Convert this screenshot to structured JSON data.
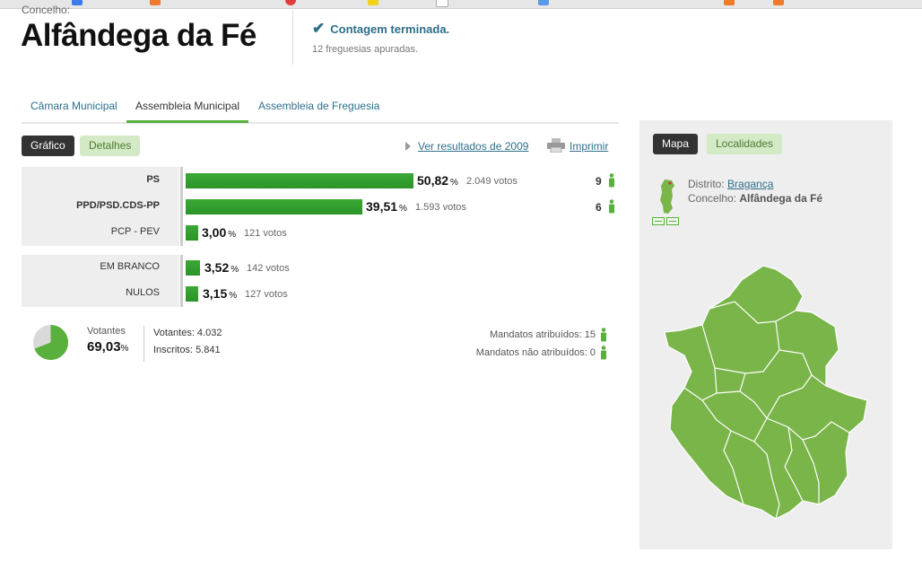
{
  "header": {
    "concelho_label": "Concelho:",
    "title": "Alfândega da Fé",
    "status": "Contagem terminada.",
    "sub_status": "12 freguesias apuradas."
  },
  "tabs": [
    {
      "label": "Câmara Municipal",
      "active": false
    },
    {
      "label": "Assembleia Municipal",
      "active": true
    },
    {
      "label": "Assembleia de Freguesia",
      "active": false
    }
  ],
  "view_toggle": {
    "grafico": "Gráfico",
    "detalhes": "Detalhes"
  },
  "links": {
    "ver_resultados": "Ver resultados de 2009",
    "imprimir": "Imprimir"
  },
  "parties": [
    {
      "name": "PS",
      "pct": "50,82",
      "votes": "2.049 votos",
      "seats": "9",
      "pct_value": 50.82
    },
    {
      "name": "PPD/PSD.CDS-PP",
      "pct": "39,51",
      "votes": "1.593 votos",
      "seats": "6",
      "pct_value": 39.51
    },
    {
      "name": "PCP - PEV",
      "pct": "3,00",
      "votes": "121 votos",
      "seats": "",
      "pct_value": 3.0
    }
  ],
  "other": [
    {
      "name": "EM BRANCO",
      "pct": "3,52",
      "votes": "142 votos",
      "pct_value": 3.52
    },
    {
      "name": "NULOS",
      "pct": "3,15",
      "votes": "127 votos",
      "pct_value": 3.15
    }
  ],
  "turnout": {
    "label": "Votantes",
    "pct": "69,03",
    "pct_value": 69.03,
    "votantes": "Votantes: 4.032",
    "inscritos": "Inscritos: 5.841",
    "mandatos_atribuidos": "Mandatos atribuídos: 15",
    "mandatos_nao": "Mandatos não atribuídos: 0"
  },
  "percent_symbol": "%",
  "map": {
    "mapa": "Mapa",
    "localidades": "Localidades",
    "distrito_label": "Distrito:",
    "distrito": "Bragança",
    "concelho_label": "Concelho:",
    "concelho": "Alfândega da Fé"
  },
  "colors": {
    "accent": "#5ab03c",
    "bar": "#2f9a2b",
    "link": "#2d6f8a",
    "map_fill": "#7ab54a"
  }
}
